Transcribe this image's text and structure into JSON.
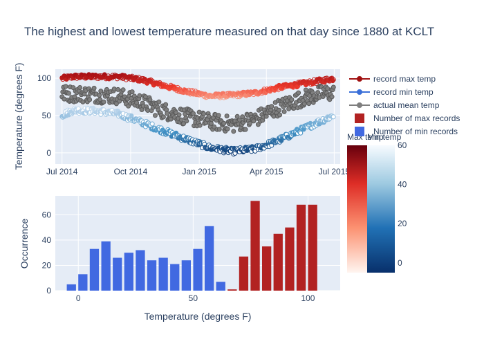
{
  "title": "The highest and lowest temperature measured on that day since 1880 at KCLT",
  "colors": {
    "plot_bg": "#e5ecf6",
    "grid": "#ffffff",
    "text": "#2a3f5f",
    "mean_marker": "#7f7f7f",
    "max_bar": "#b22222",
    "min_bar": "#4169e1"
  },
  "legend": {
    "position": "right",
    "items": [
      {
        "name": "record max temp",
        "kind": "line",
        "color": "#a01010"
      },
      {
        "name": "record min temp",
        "kind": "line",
        "color": "#3a6fd8"
      },
      {
        "name": "actual mean temp",
        "kind": "line",
        "color": "#7f7f7f"
      },
      {
        "name": "Number of max records",
        "kind": "box",
        "color": "#b22222"
      },
      {
        "name": "Number of min records",
        "kind": "box",
        "color": "#4169e1"
      }
    ]
  },
  "chart_data": [
    {
      "type": "scatter",
      "xlabel": "",
      "ylabel": "Temperature (degrees F)",
      "x_ticks": [
        "Jul 2014",
        "Oct 2014",
        "Jan 2015",
        "Apr 2015",
        "Jul 2015"
      ],
      "x_range": [
        "2014-06-22",
        "2015-07-09"
      ],
      "ylim": [
        -15,
        112
      ],
      "y_ticks": [
        0,
        50,
        100
      ],
      "x_start": "2014-07-01",
      "x_end": "2015-06-30",
      "series": [
        {
          "name": "record max temp",
          "colorscale": "Reds",
          "marker_open": true,
          "monthly": [
            102,
            102,
            102,
            98,
            90,
            82,
            76,
            77,
            80,
            87,
            92,
            97
          ]
        },
        {
          "name": "record min temp",
          "colorscale": "Blues",
          "marker_open": true,
          "monthly": [
            57,
            56,
            52,
            41,
            29,
            18,
            7,
            2,
            5,
            16,
            30,
            44
          ]
        },
        {
          "name": "actual mean temp",
          "colorscale": "none",
          "marker_open": false,
          "monthly": [
            79,
            78,
            76,
            68,
            56,
            48,
            42,
            38,
            45,
            60,
            72,
            80
          ]
        }
      ],
      "colorbars": [
        {
          "title": "Max temp",
          "range": [
            0,
            100
          ],
          "colorscale": "Reds"
        },
        {
          "title": "Min temp",
          "range": [
            -5,
            60
          ],
          "ticks": [
            0,
            20,
            40,
            60
          ],
          "colorscale": "Blues"
        }
      ]
    },
    {
      "type": "bar",
      "xlabel": "Temperature (degrees F)",
      "ylabel": "Occurrence",
      "xlim": [
        -10,
        114
      ],
      "x_ticks": [
        0,
        50,
        100
      ],
      "ylim": [
        0,
        75
      ],
      "y_ticks": [
        0,
        20,
        40,
        60
      ],
      "bin_width": 5,
      "series": [
        {
          "name": "Number of min records",
          "x": [
            -3,
            2,
            7,
            12,
            17,
            22,
            27,
            32,
            37,
            42,
            47,
            52,
            57
          ],
          "values": [
            5,
            13,
            33,
            39,
            26,
            30,
            32,
            24,
            26,
            21,
            24,
            33,
            51
          ]
        },
        {
          "name": "Number of min records",
          "x": [
            62
          ],
          "values": [
            7
          ]
        },
        {
          "name": "Number of max records",
          "x": [
            67,
            72,
            77,
            82,
            87,
            92,
            97,
            102
          ],
          "values": [
            1,
            27,
            71,
            35,
            45,
            50,
            68,
            68
          ]
        }
      ]
    }
  ]
}
